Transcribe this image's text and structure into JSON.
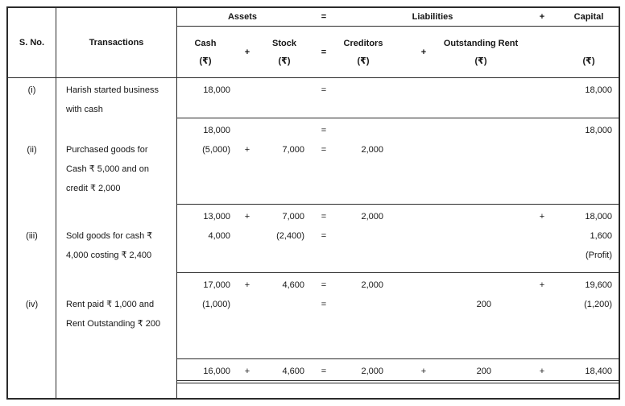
{
  "colors": {
    "border": "#2b2b2b",
    "text": "#161616",
    "background": "#ffffff"
  },
  "header": {
    "s_no": "S. No.",
    "transactions": "Transactions",
    "group": {
      "assets": "Assets",
      "eq": "=",
      "liabilities": "Liabilities",
      "plus": "+",
      "capital": "Capital"
    },
    "sub": {
      "cash": "Cash",
      "cash_unit": "(₹)",
      "plus1": "+",
      "stock": "Stock",
      "stock_unit": "(₹)",
      "eq": "=",
      "creditors": "Creditors",
      "creditors_unit": "(₹)",
      "plus2": "+",
      "rent": "Outstanding Rent",
      "rent_unit": "(₹)",
      "capital_unit": "(₹)"
    }
  },
  "rows": [
    {
      "s_no": "(i)",
      "transaction": [
        "Harish started business",
        "with cash"
      ],
      "lines": [
        {
          "cash": "18,000",
          "eq": "=",
          "capital": "18,000"
        }
      ]
    },
    {
      "s_no": "(ii)",
      "transaction": [
        "Purchased goods for",
        "Cash ₹ 5,000 and on",
        "credit ₹ 2,000"
      ],
      "lines": [
        {
          "cash": "18,000",
          "eq": "=",
          "capital": "18,000"
        },
        {
          "cash": "(5,000)",
          "plus1": "+",
          "stock": "7,000",
          "eq": "=",
          "creditors": "2,000"
        }
      ]
    },
    {
      "s_no": "(iii)",
      "transaction": [
        "Sold goods for cash ₹",
        "4,000 costing ₹ 2,400"
      ],
      "lines": [
        {
          "cash": "13,000",
          "plus1": "+",
          "stock": "7,000",
          "eq": "=",
          "creditors": "2,000",
          "plus3": "+",
          "capital": "18,000"
        },
        {
          "cash": "4,000",
          "stock": "(2,400)",
          "eq": "=",
          "capital": "1,600"
        },
        {
          "capital": "(Profit)"
        }
      ]
    },
    {
      "s_no": "(iv)",
      "transaction": [
        "Rent paid ₹ 1,000 and",
        "Rent Outstanding ₹ 200"
      ],
      "lines": [
        {
          "cash": "17,000",
          "plus1": "+",
          "stock": "4,600",
          "eq": "=",
          "creditors": "2,000",
          "plus3": "+",
          "capital": "19,600"
        },
        {
          "cash": "(1,000)",
          "eq": "=",
          "rent": "200",
          "capital": "(1,200)"
        }
      ]
    }
  ],
  "totals": {
    "cash": "16,000",
    "plus1": "+",
    "stock": "4,600",
    "eq": "=",
    "creditors": "2,000",
    "plus2": "+",
    "rent": "200",
    "plus3": "+",
    "capital": "18,400"
  }
}
